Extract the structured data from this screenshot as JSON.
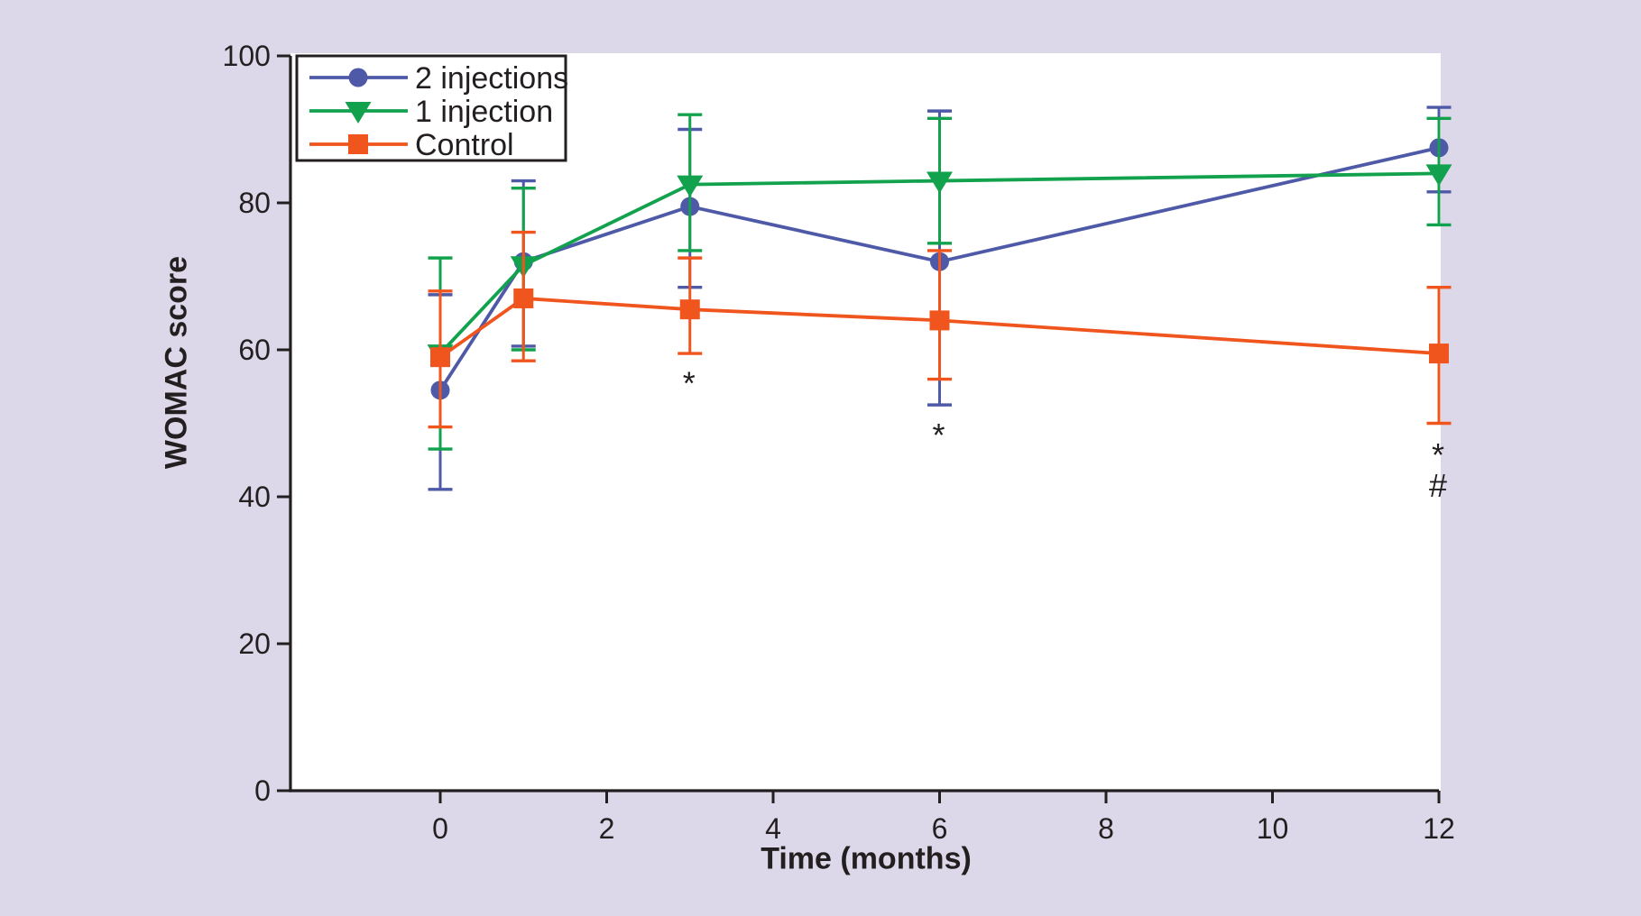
{
  "chart_data": {
    "type": "line",
    "title": "",
    "xlabel": "Time (months)",
    "ylabel": "WOMAC score",
    "x": [
      0,
      1,
      3,
      6,
      12
    ],
    "x_ticks": [
      0,
      2,
      4,
      6,
      8,
      10,
      12
    ],
    "y_ticks": [
      0,
      20,
      40,
      60,
      80,
      100
    ],
    "xlim": [
      -1.8,
      12
    ],
    "ylim": [
      0,
      100
    ],
    "grid": false,
    "legend_position": "top-left",
    "series": [
      {
        "name": "2 injections",
        "marker": "circle",
        "color": "#4E5AA7",
        "values": [
          54.5,
          72,
          79.5,
          72,
          87.5
        ],
        "upper_caps": [
          67.5,
          83,
          90,
          92.5,
          93
        ],
        "lower_caps": [
          41,
          60.5,
          68.5,
          52.5,
          81.5
        ]
      },
      {
        "name": "1 injection",
        "marker": "triangle-down",
        "color": "#12A24D",
        "values": [
          59.5,
          71.5,
          82.5,
          83,
          84
        ],
        "upper_caps": [
          72.5,
          82,
          92,
          91.5,
          91.5
        ],
        "lower_caps": [
          46.5,
          60,
          73.5,
          74.5,
          77
        ]
      },
      {
        "name": "Control",
        "marker": "square",
        "color": "#F0551E",
        "values": [
          59,
          67,
          65.5,
          64,
          59.5
        ],
        "upper_caps": [
          68,
          76,
          72.5,
          73.5,
          68.5
        ],
        "lower_caps": [
          49.5,
          58.5,
          59.5,
          56,
          50
        ]
      }
    ],
    "annotations": [
      {
        "text": "*",
        "x": 3,
        "y": 56.4
      },
      {
        "text": "*",
        "x": 6,
        "y": 49.3
      },
      {
        "text": "*",
        "x": 12,
        "y": 46.6
      },
      {
        "text": "#",
        "x": 12,
        "y": 41.6
      }
    ],
    "colors": {
      "background": "#DCD8E9",
      "plot_background": "#FFFFFF",
      "axis": "#231F20",
      "text": "#231F20"
    }
  }
}
